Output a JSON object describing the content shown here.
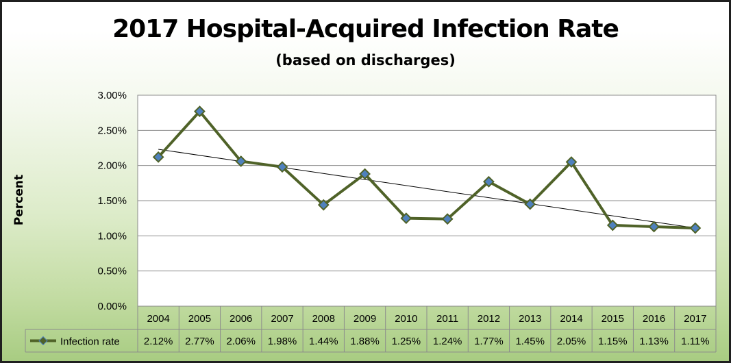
{
  "header": {
    "title": "2017 Hospital-Acquired Infection Rate",
    "subtitle": "(based on discharges)"
  },
  "chart_data": {
    "type": "line",
    "title": "2017 Hospital-Acquired Infection Rate",
    "subtitle": "(based on discharges)",
    "ylabel": "Percent",
    "xlabel": "",
    "categories": [
      "2004",
      "2005",
      "2006",
      "2007",
      "2008",
      "2009",
      "2010",
      "2011",
      "2012",
      "2013",
      "2014",
      "2015",
      "2016",
      "2017"
    ],
    "series": [
      {
        "name": "Infection rate",
        "values": [
          2.12,
          2.77,
          2.06,
          1.98,
          1.44,
          1.88,
          1.25,
          1.24,
          1.77,
          1.45,
          2.05,
          1.15,
          1.13,
          1.11
        ],
        "labels": [
          "2.12%",
          "2.77%",
          "2.06%",
          "1.98%",
          "1.44%",
          "1.88%",
          "1.25%",
          "1.24%",
          "1.77%",
          "1.45%",
          "2.05%",
          "1.15%",
          "1.13%",
          "1.11%"
        ],
        "color": "#4f6228",
        "marker_color": "#4f81bd"
      }
    ],
    "trendline": {
      "type": "linear",
      "color": "#000000"
    },
    "ylim": [
      0,
      3
    ],
    "yticks": [
      "0.00%",
      "0.50%",
      "1.00%",
      "1.50%",
      "2.00%",
      "2.50%",
      "3.00%"
    ],
    "grid": true,
    "legend": "data-table",
    "plot_background": "#ffffff"
  }
}
